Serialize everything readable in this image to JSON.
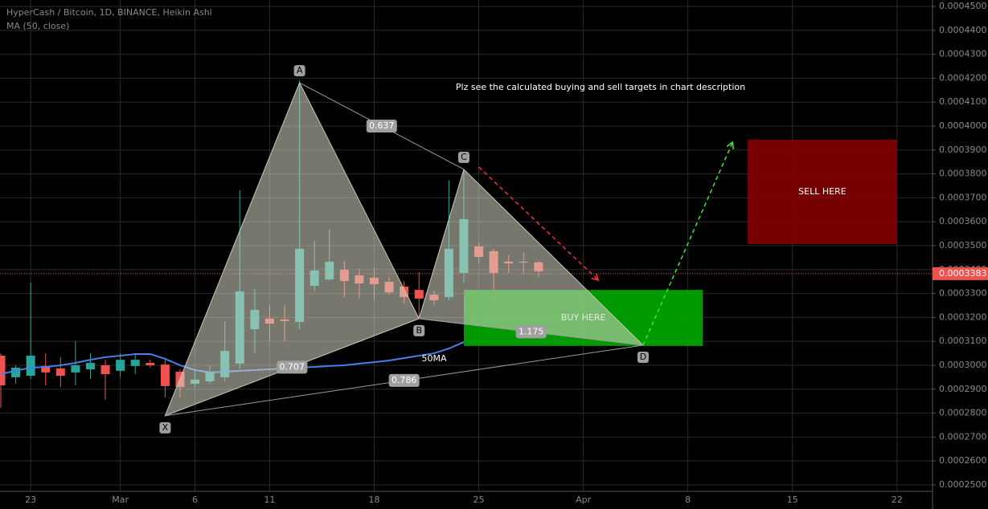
{
  "chart_data": {
    "type": "candlestick",
    "title": "HyperCash / Bitcoin, 1D, BINANCE, Heikin Ashi",
    "indicator": "MA (50, close)",
    "note": "Plz see the calculated buying and sell targets in chart description",
    "categories": [
      null,
      null,
      "23",
      null,
      null,
      null,
      null,
      null,
      "Mar",
      null,
      null,
      null,
      null,
      "6",
      null,
      null,
      null,
      null,
      "11",
      null,
      null,
      null,
      null,
      null,
      null,
      "18",
      null,
      null,
      null,
      null,
      null,
      null,
      "25",
      null,
      null,
      null,
      null,
      null,
      null,
      "Apr",
      null,
      null,
      null,
      null,
      null,
      null,
      "8",
      null,
      null,
      null,
      null,
      null,
      null,
      "15",
      null,
      null,
      null,
      null,
      null,
      null,
      "22",
      null,
      null
    ],
    "open": [
      0.000304,
      0.000295,
      0.0002956,
      0.0002997,
      0.0002987,
      0.000297,
      0.0002983,
      0.0003,
      0.0002977,
      0.0002997,
      0.000301,
      0.0003003,
      0.0002973,
      0.0002923,
      0.0002933,
      0.000295,
      0.0003007,
      0.0003151,
      0.0003195,
      0.0003191,
      0.0003181,
      0.0003332,
      0.0003359,
      0.0003399,
      0.0003376,
      0.0003366,
      0.0003349,
      0.0003329,
      0.0003315,
      0.0003295,
      0.0003285,
      0.0003386,
      0.0003497,
      0.0003477,
      0.0003433,
      0.0003433,
      0.000343,
      null,
      null,
      null,
      null,
      null,
      null,
      null,
      null,
      null,
      null,
      null,
      null,
      null,
      null,
      null,
      null,
      null,
      null,
      null,
      null,
      null,
      null,
      null,
      null,
      null,
      null
    ],
    "high": [
      0.000305,
      0.0003,
      0.0003346,
      0.000305,
      0.0003034,
      0.0003101,
      0.000305,
      0.0003023,
      0.000305,
      0.000305,
      0.0003023,
      0.0003023,
      0.0002983,
      0.0002977,
      0.0003,
      0.0003185,
      0.0003732,
      0.0003319,
      0.0003252,
      0.0003252,
      0.0004191,
      0.000352,
      0.000357,
      0.0003436,
      0.0003403,
      0.0003409,
      0.0003369,
      0.0003352,
      0.0003389,
      0.0003312,
      0.0003772,
      0.0003812,
      0.0003513,
      0.0003487,
      0.000346,
      0.0003473,
      0.0003436,
      null,
      null,
      null,
      null,
      null,
      null,
      null,
      null,
      null,
      null,
      null,
      null,
      null,
      null,
      null,
      null,
      null,
      null,
      null,
      null,
      null,
      null,
      null,
      null,
      null,
      null
    ],
    "low": [
      0.0002822,
      0.0002923,
      0.0002943,
      0.0002916,
      0.0002909,
      0.0002916,
      0.0002943,
      0.0002856,
      0.000295,
      0.0002963,
      0.000299,
      0.0002866,
      0.0002866,
      0.0002909,
      0.0002923,
      0.0002933,
      0.0002983,
      0.000305,
      0.0003101,
      0.0003101,
      0.0003151,
      0.0003309,
      0.0003352,
      0.0003285,
      0.0003279,
      0.0003272,
      0.0003295,
      0.0003258,
      0.0003201,
      0.0003252,
      0.0003272,
      0.0003346,
      0.0003426,
      0.0003265,
      0.0003386,
      0.0003379,
      0.0003369,
      null,
      null,
      null,
      null,
      null,
      null,
      null,
      null,
      null,
      null,
      null,
      null,
      null,
      null,
      null,
      null,
      null,
      null,
      null,
      null,
      null,
      null,
      null,
      null,
      null,
      null
    ],
    "close": [
      0.0002916,
      0.000299,
      0.000304,
      0.000297,
      0.0002956,
      0.0003,
      0.000301,
      0.0002963,
      0.0003023,
      0.0003023,
      0.0003,
      0.0002913,
      0.0002909,
      0.000294,
      0.0002973,
      0.000306,
      0.0003309,
      0.0003232,
      0.0003174,
      0.0003185,
      0.0003487,
      0.0003396,
      0.0003433,
      0.0003352,
      0.0003342,
      0.0003339,
      0.0003305,
      0.0003285,
      0.0003279,
      0.0003272,
      0.0003487,
      0.0003611,
      0.0003453,
      0.0003386,
      0.0003426,
      0.000343,
      0.0003393,
      null,
      null,
      null,
      null,
      null,
      null,
      null,
      null,
      null,
      null,
      null,
      null,
      null,
      null,
      null,
      null,
      null,
      null,
      null,
      null,
      null,
      null,
      null,
      null,
      null,
      null
    ],
    "up_color": "#26a69a",
    "down_color": "#ef5350",
    "ma": {
      "name": "50MA",
      "color": "#4a7ee8",
      "values": [
        0.0002963,
        0.0002977,
        0.000299,
        0.0002993,
        0.0003,
        0.000301,
        0.0003023,
        0.0003034,
        0.000304,
        0.0003047,
        0.0003047,
        0.0003027,
        0.0003,
        0.000298,
        0.000297,
        0.0002973,
        0.0002977,
        0.000298,
        0.0002983,
        0.0002987,
        0.000299,
        0.0002993,
        0.0002997,
        0.0003,
        0.0003007,
        0.0003013,
        0.000302,
        0.000303,
        0.000304,
        0.000305,
        0.000307,
        0.0003097,
        null,
        null,
        null,
        null,
        null,
        null,
        null,
        null,
        null,
        null,
        null,
        null,
        null,
        null,
        null,
        null,
        null,
        null,
        null,
        null,
        null,
        null,
        null,
        null,
        null,
        null,
        null,
        null,
        null,
        null,
        null
      ]
    },
    "last_price": 0.0003383,
    "pattern": {
      "labels": [
        "X",
        "A",
        "B",
        "C",
        "D"
      ],
      "at": [
        11,
        20,
        28,
        31,
        43
      ],
      "values": [
        0.0002789,
        0.0004181,
        0.0003195,
        0.0003819,
        0.0003084
      ]
    },
    "ratios": [
      0.637,
      0.707,
      0.786,
      1.175
    ],
    "buy_zone": {
      "label": "BUY HERE",
      "from": 31,
      "to": 47,
      "low": 0.0003081,
      "high": 0.0003315,
      "color": "#00b400"
    },
    "sell_zone": {
      "label": "SELL HERE",
      "from": 50,
      "to": 60,
      "low": 0.0003507,
      "high": 0.0003943,
      "color": "#8b0000"
    },
    "arrows": [
      {
        "color": "#ff3030",
        "from": 32,
        "to": 40,
        "start": 0.0003829,
        "end": 0.0003356
      },
      {
        "color": "#33ee33",
        "from": 43,
        "to": 49,
        "start": 0.0003084,
        "end": 0.0003933
      }
    ],
    "ylim": [
      0.0002473,
      0.0004527
    ],
    "yticks": [
      {
        "value": 0.00025,
        "label": "0.0002500"
      },
      {
        "value": 0.00026,
        "label": "0.0002600"
      },
      {
        "value": 0.00027,
        "label": "0.0002700"
      },
      {
        "value": 0.00028,
        "label": "0.0002800"
      },
      {
        "value": 0.00029,
        "label": "0.0002900"
      },
      {
        "value": 0.0003,
        "label": "0.0003000"
      },
      {
        "value": 0.00031,
        "label": "0.0003100"
      },
      {
        "value": 0.00032,
        "label": "0.0003200"
      },
      {
        "value": 0.00033,
        "label": "0.0003300"
      },
      {
        "value": 0.00034,
        "label": "0.0003400"
      },
      {
        "value": 0.00035,
        "label": "0.0003500"
      },
      {
        "value": 0.00036,
        "label": "0.0003600"
      },
      {
        "value": 0.00037,
        "label": "0.0003700"
      },
      {
        "value": 0.00038,
        "label": "0.0003800"
      },
      {
        "value": 0.00039,
        "label": "0.0003900"
      },
      {
        "value": 0.0004,
        "label": "0.0004000"
      },
      {
        "value": 0.00041,
        "label": "0.0004100"
      },
      {
        "value": 0.00042,
        "label": "0.0004200"
      },
      {
        "value": 0.00043,
        "label": "0.0004300"
      },
      {
        "value": 0.00044,
        "label": "0.0004400"
      },
      {
        "value": 0.00045,
        "label": "0.0004500"
      }
    ],
    "grid": true
  }
}
